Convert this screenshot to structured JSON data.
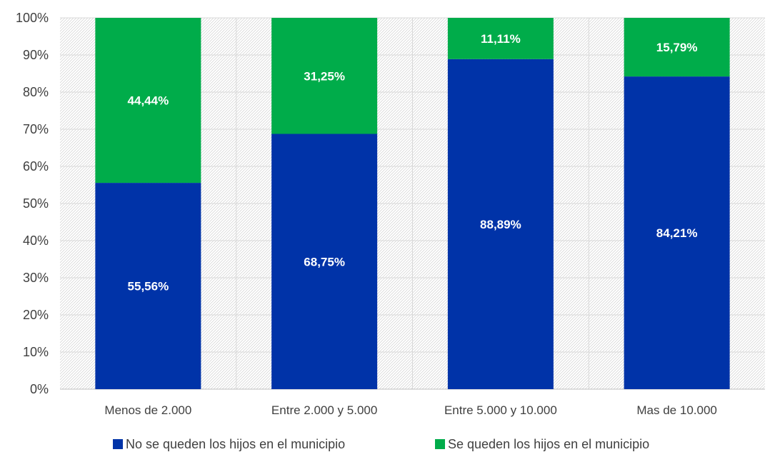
{
  "chart_data": {
    "type": "bar",
    "stacked": true,
    "percent_stacked": true,
    "categories": [
      "Menos de 2.000",
      "Entre 2.000 y 5.000",
      "Entre 5.000 y 10.000",
      "Mas de 10.000"
    ],
    "series": [
      {
        "name": "No se queden los hijos en el municipio",
        "values": [
          55.56,
          68.75,
          88.89,
          84.21
        ],
        "labels": [
          "55,56%",
          "68,75%",
          "88,89%",
          "84,21%"
        ],
        "color": "#0033A8"
      },
      {
        "name": "Se queden los hijos en el municipio",
        "values": [
          44.44,
          31.25,
          11.11,
          15.79
        ],
        "labels": [
          "44,44%",
          "31,25%",
          "11,11%",
          "15,79%"
        ],
        "color": "#00AC4A"
      }
    ],
    "yticks": [
      "0%",
      "10%",
      "20%",
      "30%",
      "40%",
      "50%",
      "60%",
      "70%",
      "80%",
      "90%",
      "100%"
    ],
    "ylim": [
      0,
      100
    ],
    "grid": true,
    "plot_background": "hatched",
    "legend_position": "bottom"
  }
}
